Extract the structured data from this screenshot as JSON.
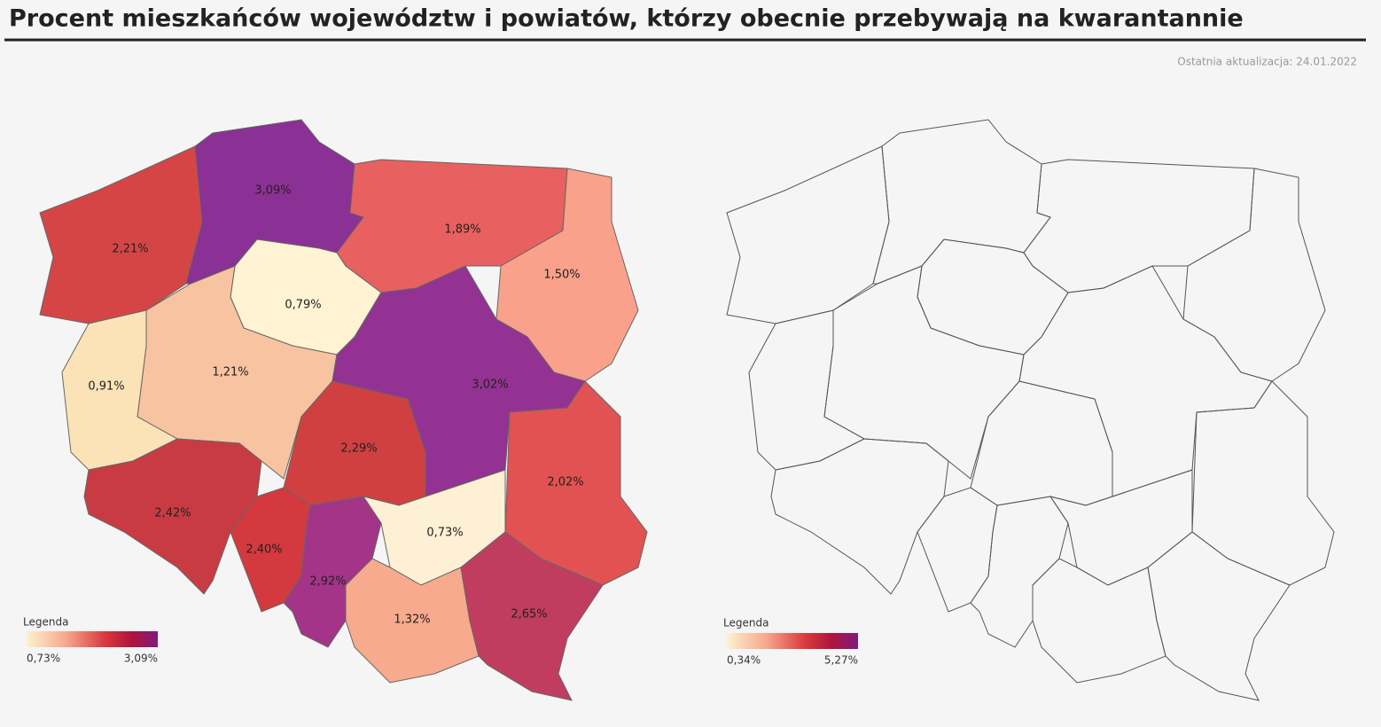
{
  "header": {
    "title": "Procent mieszkańców województw i powiatów, którzy obecnie przebywają na kwarantannie",
    "updated": "Ostatnia aktualizacja: 24.01.2022"
  },
  "maps": [
    {
      "regions": [
        {
          "label": "2,21%",
          "color": "#d64545"
        },
        {
          "label": "3,09%",
          "color": "#8b3094"
        },
        {
          "label": "1,89%",
          "color": "#e86060"
        },
        {
          "label": "1,50%",
          "color": "#f9a18a"
        },
        {
          "label": "0,79%",
          "color": "#fff3d3"
        },
        {
          "label": "1,21%",
          "color": "#f7c3a0"
        },
        {
          "label": "0,91%",
          "color": "#fbe3b7"
        },
        {
          "label": "3,02%",
          "color": "#933292"
        },
        {
          "label": "2,29%",
          "color": "#d04040"
        },
        {
          "label": "2,02%",
          "color": "#e35252"
        },
        {
          "label": "2,42%",
          "color": "#c93b43"
        },
        {
          "label": "2,40%",
          "color": "#d4393f"
        },
        {
          "label": "2,92%",
          "color": "#a33488"
        },
        {
          "label": "0,73%",
          "color": "#fdf0d4"
        },
        {
          "label": "1,32%",
          "color": "#f7aa8d"
        },
        {
          "label": "2,65%",
          "color": "#c13d5f"
        }
      ],
      "legend": {
        "title": "Legenda",
        "min": "0,73%",
        "max": "3,09%"
      }
    },
    {
      "legend": {
        "title": "Legenda",
        "min": "0,34%",
        "max": "5,27%"
      }
    }
  ]
}
